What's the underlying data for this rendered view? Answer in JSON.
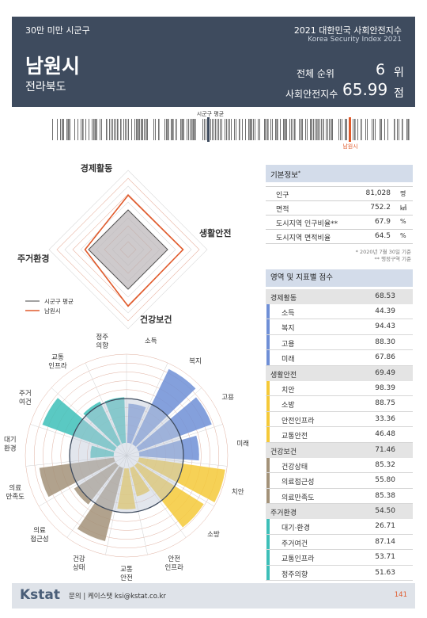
{
  "header": {
    "category": "30만 미만 시군구",
    "region_name": "남원시",
    "province": "전라북도",
    "index_title": "2021 대한민국 사회안전지수",
    "index_title_en": "Korea Security Index 2021",
    "rank_label": "전체 순위",
    "rank_value": "6",
    "rank_unit": "위",
    "score_label": "사회안전지수",
    "score_value": "65.99",
    "score_unit": "점"
  },
  "rank_strip": {
    "average_label": "시군구 평균",
    "region_label": "남원시",
    "colors": {
      "bar": "#6f6f6f",
      "average": "#3e4b5e",
      "region": "#e05a2b"
    }
  },
  "radar": {
    "axes": [
      "경제활동",
      "생활안전",
      "건강보건",
      "주거환경"
    ],
    "legend": {
      "average": "시군구 평균",
      "region": "남원시"
    },
    "chart_data": {
      "type": "radar",
      "max": 100,
      "series": [
        {
          "name": "시군구 평균",
          "values": [
            50,
            50,
            50,
            50
          ],
          "color": "#444444"
        },
        {
          "name": "남원시",
          "values": [
            68.53,
            69.49,
            71.46,
            54.5
          ],
          "color": "#e05a2b"
        }
      ]
    }
  },
  "polar": {
    "chart_data": {
      "type": "polar-bar",
      "max": 100,
      "average": 50,
      "categories": [
        "소득",
        "복지",
        "고용",
        "미래",
        "치안",
        "소방",
        "안전\n인프라",
        "교통\n안전",
        "건강\n상태",
        "의료\n접근성",
        "의료\n만족도",
        "대기\n환경",
        "주거\n여건",
        "교통\n인프라",
        "정주\n의향"
      ],
      "values": [
        44.39,
        94.43,
        88.3,
        67.86,
        98.39,
        88.75,
        33.36,
        46.48,
        85.32,
        55.8,
        85.38,
        26.71,
        87.14,
        53.71,
        51.63
      ],
      "group_colors": [
        "#6f8fd6",
        "#6f8fd6",
        "#6f8fd6",
        "#6f8fd6",
        "#f5c938",
        "#f5c938",
        "#f5c938",
        "#f5c938",
        "#a39279",
        "#a39279",
        "#a39279",
        "#3dbfb8",
        "#3dbfb8",
        "#3dbfb8",
        "#3dbfb8"
      ]
    }
  },
  "basic_info": {
    "title": "기본정보",
    "title_sup": "*",
    "rows": [
      {
        "label": "인구",
        "value": "81,028",
        "unit": "명"
      },
      {
        "label": "면적",
        "value": "752.2",
        "unit": "㎢"
      },
      {
        "label": "도시지역 인구비율**",
        "value": "67.9",
        "unit": "%"
      },
      {
        "label": "도시지역 면적비율",
        "value": "64.5",
        "unit": "%"
      }
    ],
    "note1": "* 2020년 7월 30일 기준",
    "note2": "** 행정구역 기준"
  },
  "scores": {
    "title": "영역 및 지표별 점수",
    "domains": [
      {
        "label": "경제활동",
        "value": "68.53",
        "color": "#6f8fd6",
        "items": [
          {
            "label": "소득",
            "value": "44.39"
          },
          {
            "label": "복지",
            "value": "94.43"
          },
          {
            "label": "고용",
            "value": "88.30"
          },
          {
            "label": "미래",
            "value": "67.86"
          }
        ]
      },
      {
        "label": "생활안전",
        "value": "69.49",
        "color": "#f5c938",
        "items": [
          {
            "label": "치안",
            "value": "98.39"
          },
          {
            "label": "소방",
            "value": "88.75"
          },
          {
            "label": "안전인프라",
            "value": "33.36"
          },
          {
            "label": "교통안전",
            "value": "46.48"
          }
        ]
      },
      {
        "label": "건강보건",
        "value": "71.46",
        "color": "#a39279",
        "items": [
          {
            "label": "건강상태",
            "value": "85.32"
          },
          {
            "label": "의료접근성",
            "value": "55.80"
          },
          {
            "label": "의료만족도",
            "value": "85.38"
          }
        ]
      },
      {
        "label": "주거환경",
        "value": "54.50",
        "color": "#3dbfb8",
        "items": [
          {
            "label": "대기·환경",
            "value": "26.71"
          },
          {
            "label": "주거여건",
            "value": "87.14"
          },
          {
            "label": "교통인프라",
            "value": "53.71"
          },
          {
            "label": "정주의향",
            "value": "51.63"
          }
        ]
      }
    ]
  },
  "footer": {
    "logo": "Kstat",
    "contact": "문의 | 케이스탯 ksi@kstat.co.kr",
    "page": "141"
  }
}
